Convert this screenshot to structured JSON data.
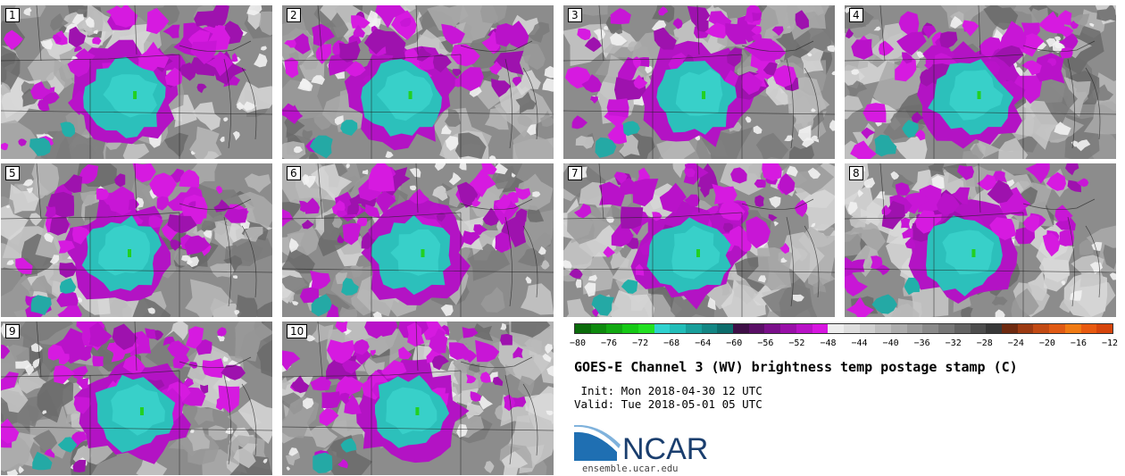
{
  "panels": [
    {
      "label": "1"
    },
    {
      "label": "2"
    },
    {
      "label": "3"
    },
    {
      "label": "4"
    },
    {
      "label": "5"
    },
    {
      "label": "6"
    },
    {
      "label": "7"
    },
    {
      "label": "8"
    },
    {
      "label": "9"
    },
    {
      "label": "10"
    }
  ],
  "colorbar": {
    "colors": [
      "#0a6b0a",
      "#0e8a0e",
      "#12a812",
      "#16c916",
      "#22e022",
      "#2fd2cf",
      "#22bdb8",
      "#199f9b",
      "#138684",
      "#0d6d6c",
      "#3f0f47",
      "#5a0f66",
      "#7a0f8a",
      "#990fa8",
      "#b812c6",
      "#d716e0",
      "#ededed",
      "#dedede",
      "#cfcfcf",
      "#bebebe",
      "#adadad",
      "#9c9c9c",
      "#8a8a8a",
      "#777777",
      "#636363",
      "#4d4d4d",
      "#383838",
      "#6e2a10",
      "#9c3a12",
      "#c24a14",
      "#e05a14",
      "#f07a14",
      "#e85a10",
      "#d6450c"
    ],
    "ticks": [
      "−80",
      "−76",
      "−72",
      "−68",
      "−64",
      "−60",
      "−56",
      "−52",
      "−48",
      "−44",
      "−40",
      "−36",
      "−32",
      "−28",
      "−24",
      "−20",
      "−16",
      "−12"
    ]
  },
  "title": "GOES-E Channel 3 (WV) brightness temp postage stamp (C)",
  "init": " Init: Mon 2018-04-30 12 UTC",
  "valid": "Valid: Tue 2018-05-01 05 UTC",
  "logo_text": "NCAR",
  "site": "ensemble.ucar.edu"
}
